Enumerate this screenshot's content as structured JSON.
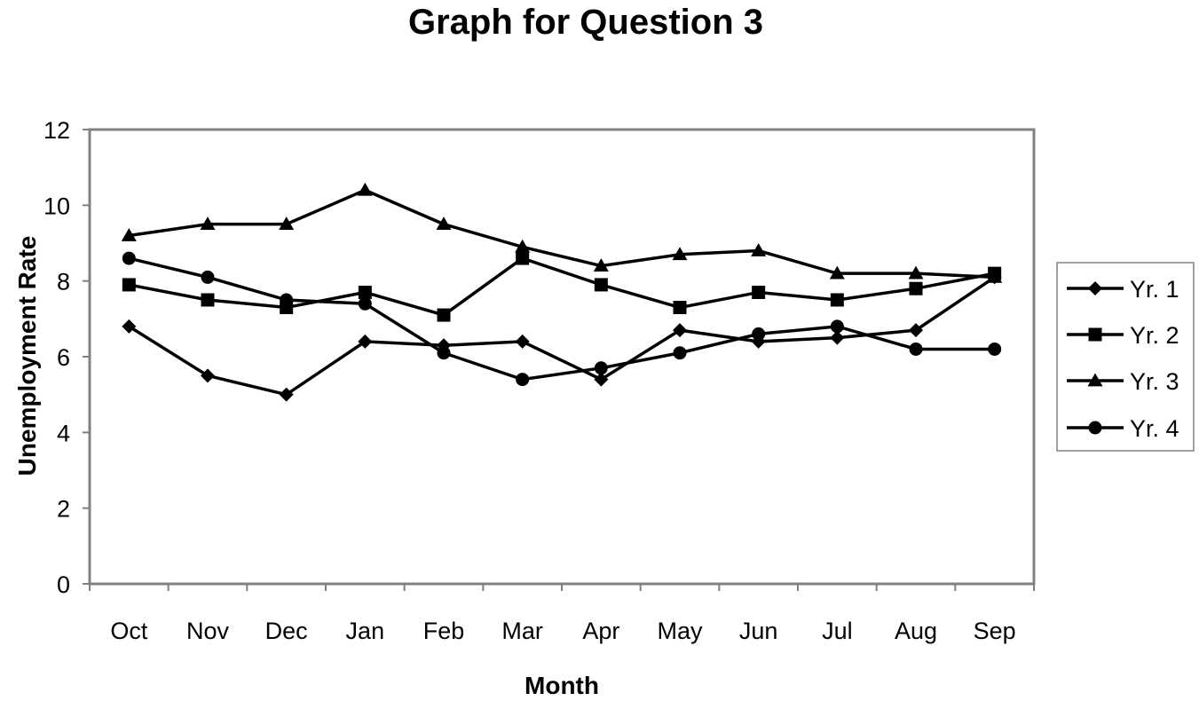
{
  "chart_data": {
    "type": "line",
    "title": "Graph for Question 3",
    "xlabel": "Month",
    "ylabel": "Unemployment Rate",
    "categories": [
      "Oct",
      "Nov",
      "Dec",
      "Jan",
      "Feb",
      "Mar",
      "Apr",
      "May",
      "Jun",
      "Jul",
      "Aug",
      "Sep"
    ],
    "ylim": [
      0,
      12
    ],
    "yticks": [
      0,
      2,
      4,
      6,
      8,
      10,
      12
    ],
    "grid": false,
    "legend_position": "right",
    "series": [
      {
        "name": "Yr. 1",
        "marker": "diamond",
        "color": "#000000",
        "values": [
          6.8,
          5.5,
          5.0,
          6.4,
          6.3,
          6.4,
          5.4,
          6.7,
          6.4,
          6.5,
          6.7,
          8.1
        ]
      },
      {
        "name": "Yr. 2",
        "marker": "square",
        "color": "#000000",
        "values": [
          7.9,
          7.5,
          7.3,
          7.7,
          7.1,
          8.6,
          7.9,
          7.3,
          7.7,
          7.5,
          7.8,
          8.2
        ]
      },
      {
        "name": "Yr. 3",
        "marker": "triangle",
        "color": "#000000",
        "values": [
          9.2,
          9.5,
          9.5,
          10.4,
          9.5,
          8.9,
          8.4,
          8.7,
          8.8,
          8.2,
          8.2,
          8.1
        ]
      },
      {
        "name": "Yr. 4",
        "marker": "circle",
        "color": "#000000",
        "values": [
          8.6,
          8.1,
          7.5,
          7.4,
          6.1,
          5.4,
          5.7,
          6.1,
          6.6,
          6.8,
          6.2,
          6.2
        ]
      }
    ],
    "plot_border_color": "#808080"
  }
}
